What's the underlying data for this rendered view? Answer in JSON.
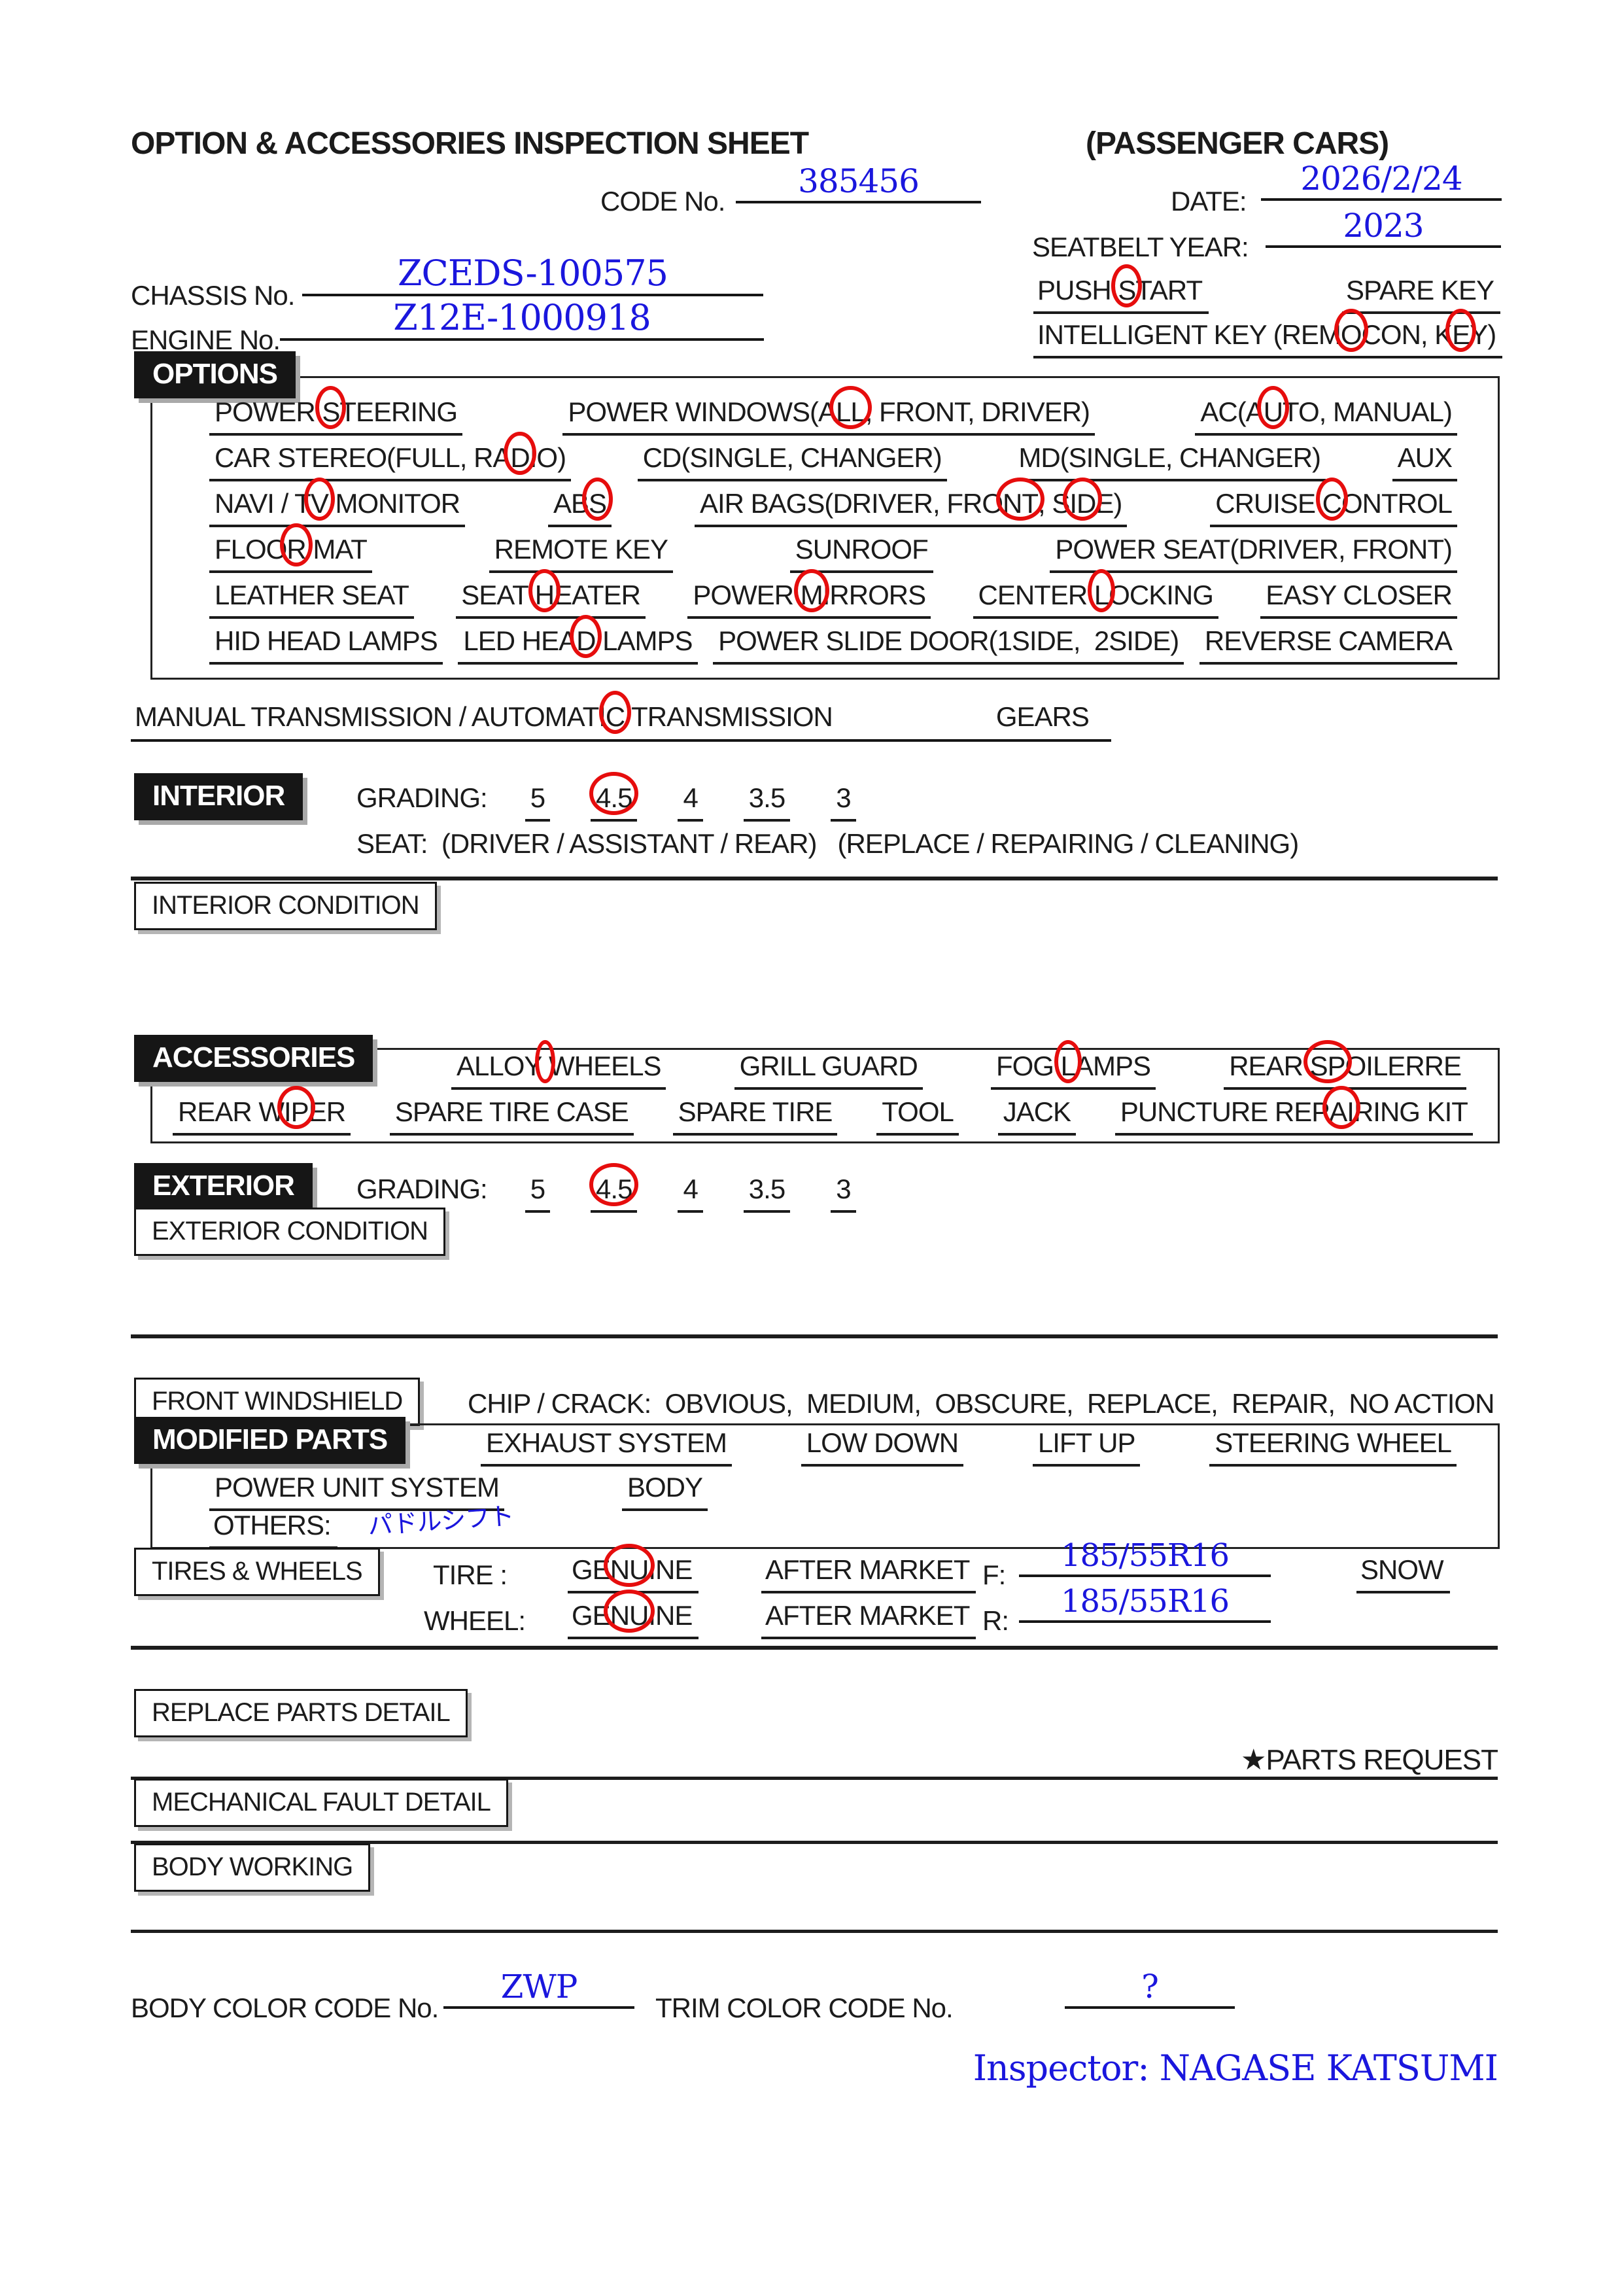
{
  "colors": {
    "accent_blue": "#1a16dd",
    "annotation_red": "#e60d0d",
    "ink": "#1b1b1b"
  },
  "header": {
    "title": "OPTION & ACCESSORIES INSPECTION SHEET",
    "subtitle": "(PASSENGER CARS)",
    "code_label": "CODE No.",
    "code_value": "385456",
    "date_label": "DATE:",
    "date_value": "2026/2/24",
    "seatbelt_label": "SEATBELT YEAR:",
    "seatbelt_value": "2023",
    "chassis_label": "CHASSIS No.",
    "chassis_value": "ZCEDS-100575",
    "engine_label": "ENGINE No.",
    "engine_value": "Z12E-1000918",
    "push_start": [
      {
        "t": "PUSH "
      },
      {
        "t": "S",
        "c": true
      },
      {
        "t": "TART"
      }
    ],
    "spare_key": "SPARE KEY",
    "intelligent_key": [
      {
        "t": "INTELLIGENT KEY (REM"
      },
      {
        "t": "O",
        "c": true
      },
      {
        "t": "CON, K"
      },
      {
        "t": "E",
        "c": true
      },
      {
        "t": "Y)"
      }
    ]
  },
  "options": {
    "label": "OPTIONS",
    "row1": [
      {
        "id": "power-steering",
        "segs": [
          {
            "t": "POWER "
          },
          {
            "t": "S",
            "c": true
          },
          {
            "t": "TEERING"
          }
        ]
      },
      {
        "id": "power-windows",
        "segs": [
          {
            "t": "POWER WINDOWS(A"
          },
          {
            "t": "LL",
            "c": true
          },
          {
            "t": ", FRONT, DRIVER)"
          }
        ]
      },
      {
        "id": "ac",
        "segs": [
          {
            "t": "AC(A"
          },
          {
            "t": "U",
            "c": true
          },
          {
            "t": "TO, MANUAL)"
          }
        ]
      }
    ],
    "row2": [
      {
        "id": "car-stereo",
        "segs": [
          {
            "t": "CAR STEREO(FULL, RA"
          },
          {
            "t": "D",
            "c": true
          },
          {
            "t": "IO)"
          }
        ]
      },
      {
        "id": "cd",
        "segs": [
          {
            "t": "CD(SINGLE, CHANGER)"
          }
        ]
      },
      {
        "id": "md",
        "segs": [
          {
            "t": "MD(SINGLE, CHANGER)"
          }
        ]
      },
      {
        "id": "aux",
        "segs": [
          {
            "t": "AUX"
          }
        ]
      }
    ],
    "row3": [
      {
        "id": "navi-tv-monitor",
        "segs": [
          {
            "t": "NAVI / T"
          },
          {
            "t": "V",
            "c": true
          },
          {
            "t": " MONITOR"
          }
        ]
      },
      {
        "id": "abs",
        "segs": [
          {
            "t": "AB"
          },
          {
            "t": "S",
            "c": true
          }
        ]
      },
      {
        "id": "air-bags",
        "segs": [
          {
            "t": "AIR BAGS(DRIVER, FRO"
          },
          {
            "t": "NT",
            "c": true
          },
          {
            "t": ", S"
          },
          {
            "t": "ID",
            "c": true
          },
          {
            "t": "E)"
          }
        ]
      },
      {
        "id": "cruise-control",
        "segs": [
          {
            "t": "CRUISE "
          },
          {
            "t": "C",
            "c": true
          },
          {
            "t": "ONTROL"
          }
        ]
      }
    ],
    "row4": [
      {
        "id": "floor-mat",
        "segs": [
          {
            "t": "FLOO"
          },
          {
            "t": "R",
            "c": true
          },
          {
            "t": " MAT"
          }
        ]
      },
      {
        "id": "remote-key",
        "segs": [
          {
            "t": "REMOTE KEY"
          }
        ]
      },
      {
        "id": "sunroof",
        "segs": [
          {
            "t": "SUNROOF"
          }
        ]
      },
      {
        "id": "power-seat",
        "segs": [
          {
            "t": "POWER SEAT(DRIVER, FRONT)"
          }
        ]
      }
    ],
    "row5": [
      {
        "id": "leather-seat",
        "segs": [
          {
            "t": "LEATHER SEAT"
          }
        ]
      },
      {
        "id": "seat-heater",
        "segs": [
          {
            "t": "SEAT "
          },
          {
            "t": "H",
            "c": true
          },
          {
            "t": "EATER"
          }
        ]
      },
      {
        "id": "power-mirrors",
        "segs": [
          {
            "t": "POWER "
          },
          {
            "t": "M",
            "c": true
          },
          {
            "t": "IRRORS"
          }
        ]
      },
      {
        "id": "center-locking",
        "segs": [
          {
            "t": "CENTER "
          },
          {
            "t": "L",
            "c": true
          },
          {
            "t": "OCKING"
          }
        ]
      },
      {
        "id": "easy-closer",
        "segs": [
          {
            "t": "EASY CLOSER"
          }
        ]
      }
    ],
    "row6": [
      {
        "id": "hid-head-lamps",
        "segs": [
          {
            "t": "HID HEAD LAMPS"
          }
        ]
      },
      {
        "id": "led-head-lamps",
        "segs": [
          {
            "t": "LED HEA"
          },
          {
            "t": "D",
            "c": true
          },
          {
            "t": " LAMPS"
          }
        ]
      },
      {
        "id": "power-slide-door",
        "segs": [
          {
            "t": "POWER SLIDE DOOR(1SIDE,  2SIDE)"
          }
        ]
      },
      {
        "id": "reverse-camera",
        "segs": [
          {
            "t": "REVERSE CAMERA"
          }
        ]
      }
    ]
  },
  "transmission": {
    "segs": [
      {
        "t": "MANUAL TRANSMISSION / AUTOMATI"
      },
      {
        "t": "C",
        "c": true
      },
      {
        "t": " TRANSMISSION"
      }
    ],
    "gears_label": "GEARS"
  },
  "interior": {
    "label": "INTERIOR",
    "grading_label": "GRADING:",
    "grades": [
      {
        "id": "grade-5",
        "segs": [
          {
            "t": "5"
          }
        ]
      },
      {
        "id": "grade-4-5",
        "segs": [
          {
            "t": "4.5",
            "c": true
          }
        ]
      },
      {
        "id": "grade-4",
        "segs": [
          {
            "t": "4"
          }
        ]
      },
      {
        "id": "grade-3-5",
        "segs": [
          {
            "t": "3.5"
          }
        ]
      },
      {
        "id": "grade-3",
        "segs": [
          {
            "t": "3"
          }
        ]
      }
    ],
    "seat_line": "SEAT:  (DRIVER / ASSISTANT / REAR)   (REPLACE / REPAIRING / CLEANING)",
    "condition_label": "INTERIOR CONDITION"
  },
  "accessories": {
    "label": "ACCESSORIES",
    "row1": [
      {
        "id": "alloy-wheels",
        "segs": [
          {
            "t": "ALLOY"
          },
          {
            "t": " ",
            "c": true
          },
          {
            "t": "WHEELS"
          }
        ]
      },
      {
        "id": "grill-guard",
        "segs": [
          {
            "t": "GRILL GUARD"
          }
        ]
      },
      {
        "id": "fog-lamps",
        "segs": [
          {
            "t": "FOG "
          },
          {
            "t": "L",
            "c": true
          },
          {
            "t": "AMPS"
          }
        ]
      },
      {
        "id": "rear-spoilerre",
        "segs": [
          {
            "t": "REAR "
          },
          {
            "t": "SP",
            "c": true
          },
          {
            "t": "OILERRE"
          }
        ]
      }
    ],
    "row2": [
      {
        "id": "rear-wiper",
        "segs": [
          {
            "t": "REAR W"
          },
          {
            "t": "IP",
            "c": true
          },
          {
            "t": "ER"
          }
        ]
      },
      {
        "id": "spare-tire-case",
        "segs": [
          {
            "t": "SPARE TIRE CASE"
          }
        ]
      },
      {
        "id": "spare-tire",
        "segs": [
          {
            "t": "SPARE TIRE"
          }
        ]
      },
      {
        "id": "tool",
        "segs": [
          {
            "t": "TOOL"
          }
        ]
      },
      {
        "id": "jack",
        "segs": [
          {
            "t": "JACK"
          }
        ]
      },
      {
        "id": "puncture-repairing-kit",
        "segs": [
          {
            "t": "PUNCTURE REP"
          },
          {
            "t": "AI",
            "c": true
          },
          {
            "t": "RING KIT"
          }
        ]
      }
    ]
  },
  "exterior": {
    "label": "EXTERIOR",
    "grading_label": "GRADING:",
    "grades": [
      {
        "id": "grade-5",
        "segs": [
          {
            "t": "5"
          }
        ]
      },
      {
        "id": "grade-4-5",
        "segs": [
          {
            "t": "4.5",
            "c": true
          }
        ]
      },
      {
        "id": "grade-4",
        "segs": [
          {
            "t": "4"
          }
        ]
      },
      {
        "id": "grade-3-5",
        "segs": [
          {
            "t": "3.5"
          }
        ]
      },
      {
        "id": "grade-3",
        "segs": [
          {
            "t": "3"
          }
        ]
      }
    ],
    "condition_label": "EXTERIOR CONDITION"
  },
  "windshield": {
    "label": "FRONT WINDSHIELD",
    "chip_line": "CHIP / CRACK:  OBVIOUS,  MEDIUM,  OBSCURE,  REPLACE,  REPAIR,  NO ACTION"
  },
  "modified": {
    "label": "MODIFIED PARTS",
    "row1": [
      {
        "id": "exhaust-system",
        "segs": [
          {
            "t": "EXHAUST SYSTEM"
          }
        ]
      },
      {
        "id": "low-down",
        "segs": [
          {
            "t": "LOW DOWN"
          }
        ]
      },
      {
        "id": "lift-up",
        "segs": [
          {
            "t": "LIFT UP"
          }
        ]
      },
      {
        "id": "steering-wheel",
        "segs": [
          {
            "t": "STEERING WHEEL"
          }
        ]
      }
    ],
    "row2": [
      {
        "id": "power-unit-system",
        "segs": [
          {
            "t": "POWER UNIT SYSTEM"
          }
        ]
      },
      {
        "id": "body",
        "segs": [
          {
            "t": "BODY"
          }
        ]
      }
    ],
    "others_label": "OTHERS:",
    "others_value": "パドルシフト"
  },
  "tires": {
    "label": "TIRES & WHEELS",
    "tire_label": "TIRE :",
    "wheel_label": "WHEEL:",
    "tire_genuine": [
      {
        "t": "GE"
      },
      {
        "t": "NU",
        "c": true
      },
      {
        "t": "INE"
      }
    ],
    "wheel_genuine": [
      {
        "t": "GE"
      },
      {
        "t": "NU",
        "c": true
      },
      {
        "t": "INE"
      }
    ],
    "after_market": "AFTER MARKET",
    "front_label": "F:",
    "front_value": "185/55R16",
    "rear_label": "R:",
    "rear_value": "185/55R16",
    "snow_label": "SNOW"
  },
  "details": {
    "replace_label": "REPLACE PARTS DETAIL",
    "parts_request": "★PARTS REQUEST",
    "mechanical_label": "MECHANICAL FAULT DETAIL",
    "body_working_label": "BODY WORKING"
  },
  "footer": {
    "body_color_label": "BODY COLOR CODE No.",
    "body_color_value": "ZWP",
    "trim_label": "TRIM COLOR CODE No.",
    "trim_value": "?",
    "inspector": "Inspector: NAGASE KATSUMI"
  }
}
